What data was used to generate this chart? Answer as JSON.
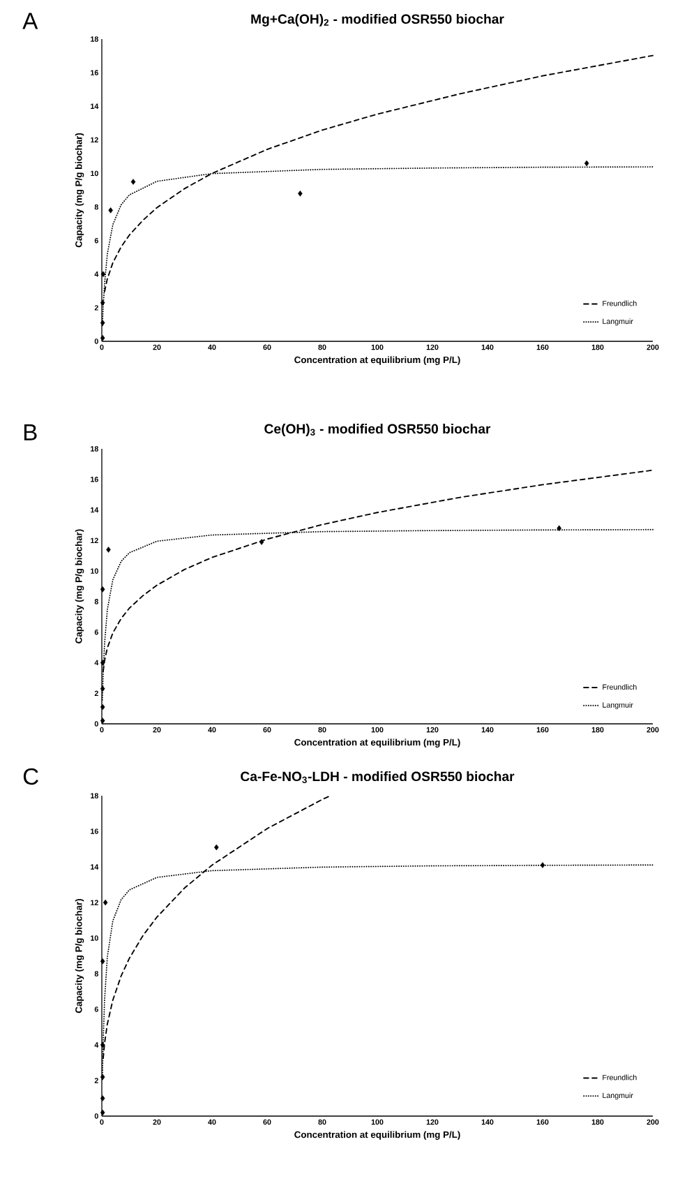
{
  "chart_data": [
    {
      "type": "scatter",
      "title": "Mg+Ca(OH)$_{2}$ - modified OSR550 biochar",
      "xlabel": "Concentration at equilibrium (mg P/L)",
      "ylabel": "Capacity (mg P/g biochar)",
      "annotations": [
        "A"
      ],
      "legend": "bottom right",
      "xlim": [
        0,
        200
      ],
      "xticks": [
        0,
        20,
        40,
        60,
        80,
        100,
        120,
        140,
        160,
        180,
        200
      ],
      "ylim": [
        0,
        18
      ],
      "yticks": [
        0,
        2,
        4,
        6,
        8,
        10,
        12,
        14,
        16,
        18
      ],
      "series": [
        {
          "type": "scatter",
          "marker": "diamond",
          "color": "#000000",
          "x": [
            0.3,
            0.3,
            0.3,
            0.5,
            3.2,
            11.4,
            72,
            176
          ],
          "values": [
            0.2,
            1.1,
            2.3,
            4.0,
            7.8,
            9.5,
            8.8,
            10.6
          ]
        },
        {
          "type": "line",
          "name": "Freundlich",
          "line_style": "dashed",
          "color": "#000000",
          "x": [
            1,
            2,
            4,
            7,
            10,
            15,
            20,
            30,
            40,
            60,
            80,
            100,
            130,
            160,
            200
          ],
          "values": [
            2.96,
            3.72,
            4.68,
            5.62,
            6.33,
            7.22,
            7.96,
            9.09,
            10.0,
            11.43,
            12.58,
            13.53,
            14.74,
            15.81,
            17.02
          ]
        },
        {
          "type": "line",
          "name": "Langmuir",
          "line_style": "dotted",
          "color": "#000000",
          "x": [
            0.2,
            0.5,
            1,
            2,
            4,
            7,
            10,
            20,
            40,
            80,
            120,
            160,
            200
          ],
          "values": [
            0.94,
            2.07,
            3.45,
            5.2,
            6.95,
            8.13,
            8.72,
            9.53,
            9.99,
            10.24,
            10.32,
            10.37,
            10.39
          ]
        }
      ]
    },
    {
      "type": "scatter",
      "title": "Ce(OH)$_{3}$ - modified OSR550 biochar",
      "xlabel": "Concentration at equilibrium (mg P/L)",
      "ylabel": "Capacity (mg P/g biochar)",
      "annotations": [
        "B"
      ],
      "legend": "bottom right",
      "xlim": [
        0,
        200
      ],
      "xticks": [
        0,
        20,
        40,
        60,
        80,
        100,
        120,
        140,
        160,
        180,
        200
      ],
      "ylim": [
        0,
        18
      ],
      "yticks": [
        0,
        2,
        4,
        6,
        8,
        10,
        12,
        14,
        16,
        18
      ],
      "series": [
        {
          "type": "scatter",
          "marker": "diamond",
          "color": "#000000",
          "x": [
            0.3,
            0.3,
            0.3,
            0.3,
            0.3,
            2.4,
            58,
            166
          ],
          "values": [
            0.2,
            1.1,
            2.3,
            4.0,
            8.8,
            11.4,
            11.9,
            12.8
          ]
        },
        {
          "type": "line",
          "name": "Freundlich",
          "line_style": "dashed",
          "color": "#000000",
          "x": [
            0.5,
            1,
            2,
            4,
            7,
            10,
            15,
            20,
            30,
            40,
            60,
            80,
            100,
            130,
            160,
            200
          ],
          "values": [
            3.45,
            4.14,
            4.96,
            5.95,
            6.89,
            7.57,
            8.4,
            9.07,
            10.1,
            10.89,
            12.09,
            13.04,
            13.83,
            14.82,
            15.65,
            16.6
          ]
        },
        {
          "type": "line",
          "name": "Langmuir",
          "line_style": "dotted",
          "color": "#000000",
          "x": [
            0.2,
            0.5,
            1,
            2,
            4,
            7,
            10,
            20,
            40,
            80,
            120,
            160,
            200
          ],
          "values": [
            1.57,
            3.32,
            5.27,
            7.47,
            9.43,
            10.63,
            11.2,
            11.95,
            12.36,
            12.58,
            12.65,
            12.69,
            12.71
          ]
        }
      ]
    },
    {
      "type": "scatter",
      "title": "Ca-Fe-NO$_{3}$-LDH - modified OSR550 biochar",
      "xlabel": "Concentration at equilibrium (mg P/L)",
      "ylabel": "Capacity (mg P/g biochar)",
      "annotations": [
        "C"
      ],
      "legend": "bottom right",
      "xlim": [
        0,
        200
      ],
      "xticks": [
        0,
        20,
        40,
        60,
        80,
        100,
        120,
        140,
        160,
        180,
        200
      ],
      "ylim": [
        0,
        18
      ],
      "yticks": [
        0,
        2,
        4,
        6,
        8,
        10,
        12,
        14,
        16,
        18
      ],
      "series": [
        {
          "type": "scatter",
          "marker": "diamond",
          "color": "#000000",
          "x": [
            0.3,
            0.3,
            0.3,
            0.3,
            0.3,
            1.3,
            41.6,
            160
          ],
          "values": [
            0.2,
            1.0,
            2.2,
            4.0,
            8.7,
            12.0,
            15.1,
            14.1
          ]
        },
        {
          "type": "line",
          "name": "Freundlich",
          "line_style": "dashed",
          "color": "#000000",
          "x": [
            0.5,
            1,
            2,
            4,
            7,
            10,
            15,
            20,
            30,
            40,
            60,
            80,
            83
          ],
          "values": [
            3.25,
            4.1,
            5.17,
            6.52,
            7.87,
            8.87,
            10.16,
            11.18,
            12.81,
            14.1,
            16.15,
            17.79,
            18.0
          ]
        },
        {
          "type": "line",
          "name": "Langmuir",
          "line_style": "dotted",
          "color": "#000000",
          "x": [
            0.2,
            0.5,
            1,
            2,
            4,
            7,
            10,
            20,
            40,
            80,
            120,
            160,
            200
          ],
          "values": [
            2.06,
            4.24,
            6.52,
            8.94,
            10.97,
            12.16,
            12.71,
            13.41,
            13.79,
            13.99,
            14.06,
            14.09,
            14.11
          ]
        }
      ]
    }
  ]
}
